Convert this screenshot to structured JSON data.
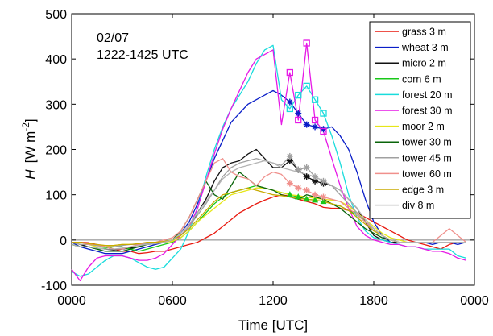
{
  "chart_data": {
    "type": "line",
    "annotation": {
      "date": "02/07",
      "period": "1222-1425 UTC"
    },
    "xlabel": "Time [UTC]",
    "ylabel": {
      "symbol": "H",
      "unit_prefix": "[W m",
      "unit_exp": "-2",
      "unit_suffix": "]"
    },
    "xlim": [
      0,
      1440
    ],
    "ylim": [
      -100,
      500
    ],
    "x_tick_values": [
      0,
      360,
      720,
      1080,
      1440
    ],
    "x_tick_labels": [
      "0000",
      "0600",
      "1200",
      "1800",
      "0000"
    ],
    "y_tick_values": [
      -100,
      0,
      100,
      200,
      300,
      400,
      500
    ],
    "y_tick_labels": [
      "-100",
      "0",
      "100",
      "200",
      "300",
      "400",
      "500"
    ],
    "zero_line": true,
    "grid": false,
    "legend_position": "top-right",
    "x_step_minutes": 30,
    "series": [
      {
        "name": "grass 3 m",
        "color": "#e8190f",
        "marker": null,
        "marker_x": [],
        "values": [
          -5,
          -5,
          -6,
          -10,
          -15,
          -20,
          -25,
          -25,
          -30,
          -28,
          -25,
          -25,
          -20,
          -15,
          -10,
          -5,
          5,
          15,
          30,
          45,
          60,
          70,
          80,
          88,
          95,
          100,
          97,
          90,
          85,
          80,
          72,
          70,
          70,
          65,
          60,
          50,
          40,
          30,
          20,
          10,
          0,
          -5,
          -10,
          -15,
          -20,
          -10,
          -5,
          -5
        ]
      },
      {
        "name": "wheat 3 m",
        "color": "#0a1ec8",
        "marker": "asterisk",
        "marker_x": [
          780,
          810,
          840,
          870,
          900
        ],
        "values": [
          -5,
          -15,
          -20,
          -25,
          -30,
          -30,
          -30,
          -25,
          -20,
          -15,
          -10,
          -5,
          0,
          15,
          40,
          80,
          130,
          180,
          220,
          260,
          280,
          300,
          310,
          320,
          330,
          320,
          305,
          280,
          255,
          250,
          245,
          250,
          230,
          200,
          150,
          90,
          40,
          10,
          -5,
          -5,
          -5,
          -5,
          -5,
          -10,
          -5,
          -5,
          -10,
          -5
        ]
      },
      {
        "name": "micro 2 m",
        "color": "#111111",
        "marker": "asterisk",
        "marker_x": [
          780,
          810,
          840,
          870,
          900
        ],
        "values": [
          -5,
          -10,
          -15,
          -18,
          -20,
          -22,
          -20,
          -18,
          -15,
          -10,
          -8,
          -5,
          0,
          10,
          30,
          60,
          90,
          130,
          160,
          170,
          175,
          190,
          200,
          180,
          160,
          160,
          175,
          155,
          140,
          130,
          125,
          120,
          110,
          90,
          70,
          40,
          10,
          0,
          -5,
          -5,
          -5,
          -5,
          -5,
          -5,
          -5,
          -5,
          -5,
          -5
        ]
      },
      {
        "name": "corn 6 m",
        "color": "#19c819",
        "marker": "triangle",
        "marker_x": [
          780,
          810,
          840,
          870,
          900
        ],
        "values": [
          -10,
          -15,
          -15,
          -20,
          -18,
          -15,
          -15,
          -20,
          -25,
          -20,
          -15,
          -10,
          -5,
          5,
          20,
          40,
          60,
          80,
          95,
          105,
          110,
          115,
          120,
          115,
          110,
          105,
          100,
          95,
          90,
          88,
          85,
          80,
          75,
          65,
          55,
          40,
          25,
          10,
          0,
          -5,
          -5,
          -5,
          -5,
          -5,
          -5,
          -5,
          -5,
          -5
        ]
      },
      {
        "name": "forest 20 m",
        "color": "#19dcdc",
        "marker": "square",
        "marker_x": [
          780,
          810,
          840,
          870,
          900
        ],
        "values": [
          -70,
          -80,
          -75,
          -60,
          -45,
          -35,
          -35,
          -40,
          -50,
          -60,
          -65,
          -60,
          -40,
          -20,
          20,
          70,
          140,
          200,
          250,
          290,
          320,
          350,
          390,
          420,
          430,
          310,
          290,
          320,
          340,
          310,
          280,
          230,
          170,
          100,
          50,
          20,
          5,
          0,
          -5,
          -10,
          -15,
          -15,
          -20,
          -20,
          -20,
          -20,
          -35,
          -40
        ]
      },
      {
        "name": "forest 30 m",
        "color": "#e619e6",
        "marker": "square",
        "marker_x": [
          780,
          810,
          840,
          870,
          900
        ],
        "values": [
          -65,
          -90,
          -60,
          -40,
          -35,
          -35,
          -35,
          -40,
          -45,
          -45,
          -40,
          -30,
          -10,
          10,
          30,
          70,
          130,
          190,
          245,
          290,
          330,
          370,
          400,
          410,
          420,
          255,
          370,
          265,
          435,
          265,
          240,
          180,
          120,
          70,
          30,
          10,
          0,
          -5,
          -10,
          -10,
          -15,
          -15,
          -20,
          -25,
          -25,
          -30,
          -40,
          -45
        ]
      },
      {
        "name": "moor 2 m",
        "color": "#e6e619",
        "marker": null,
        "marker_x": [],
        "values": [
          -5,
          -10,
          -10,
          -15,
          -15,
          -12,
          -10,
          -10,
          -10,
          -8,
          -5,
          -5,
          -3,
          5,
          20,
          40,
          55,
          70,
          85,
          100,
          105,
          110,
          115,
          115,
          110,
          105,
          100,
          98,
          95,
          92,
          90,
          88,
          85,
          75,
          60,
          45,
          30,
          15,
          5,
          0,
          -5,
          -5,
          -5,
          -5,
          -5,
          -5,
          -5,
          -5
        ]
      },
      {
        "name": "tower 30 m",
        "color": "#0a640a",
        "marker": null,
        "marker_x": [],
        "values": [
          -10,
          -15,
          -15,
          -20,
          -25,
          -25,
          -25,
          -20,
          -15,
          -10,
          -5,
          -5,
          0,
          20,
          50,
          90,
          130,
          100,
          90,
          120,
          150,
          135,
          120,
          115,
          110,
          100,
          95,
          90,
          100,
          95,
          90,
          80,
          70,
          55,
          40,
          25,
          15,
          5,
          0,
          -5,
          -5,
          -5,
          -5,
          -5,
          -5,
          -5,
          -5,
          -5
        ]
      },
      {
        "name": "tower 45 m",
        "color": "#a0a0a0",
        "marker": "asterisk",
        "marker_x": [
          780,
          810,
          840,
          870,
          900
        ],
        "values": [
          -5,
          -10,
          -10,
          -12,
          -15,
          -15,
          -12,
          -10,
          -10,
          -8,
          -5,
          -5,
          0,
          10,
          30,
          55,
          80,
          110,
          140,
          160,
          170,
          175,
          180,
          175,
          170,
          165,
          185,
          155,
          160,
          140,
          130,
          120,
          100,
          80,
          60,
          40,
          20,
          10,
          0,
          -5,
          -5,
          -5,
          -5,
          -5,
          -5,
          -5,
          -5,
          -5
        ]
      },
      {
        "name": "tower 60 m",
        "color": "#f0908c",
        "marker": "asterisk",
        "marker_x": [
          780,
          810,
          840,
          870,
          900
        ],
        "values": [
          -5,
          -5,
          -10,
          -10,
          -15,
          -20,
          -20,
          -15,
          -10,
          -5,
          -5,
          0,
          5,
          20,
          50,
          90,
          130,
          170,
          180,
          150,
          140,
          135,
          120,
          140,
          150,
          145,
          125,
          115,
          110,
          100,
          95,
          90,
          85,
          70,
          55,
          40,
          25,
          10,
          0,
          -5,
          -5,
          -5,
          -5,
          -5,
          10,
          25,
          10,
          -5
        ]
      },
      {
        "name": "edge 3 m",
        "color": "#c8aa00",
        "marker": null,
        "marker_x": [],
        "values": [
          -5,
          -5,
          -8,
          -10,
          -12,
          -12,
          -10,
          -10,
          -8,
          -5,
          -5,
          -3,
          0,
          10,
          25,
          45,
          65,
          85,
          100,
          105,
          110,
          115,
          110,
          105,
          100,
          98,
          95,
          92,
          90,
          88,
          85,
          80,
          75,
          65,
          50,
          35,
          20,
          10,
          0,
          -5,
          -5,
          -5,
          -5,
          -5,
          -5,
          -5,
          -5,
          -5
        ]
      },
      {
        "name": "div 8 m",
        "color": "#b4b4b4",
        "marker": null,
        "marker_x": [],
        "values": [
          -10,
          -15,
          -15,
          -18,
          -20,
          -20,
          -18,
          -15,
          -12,
          -10,
          -8,
          -5,
          0,
          15,
          35,
          60,
          85,
          110,
          135,
          150,
          160,
          165,
          170,
          175,
          170,
          160,
          155,
          150,
          145,
          140,
          130,
          120,
          110,
          90,
          70,
          45,
          25,
          10,
          0,
          -5,
          -5,
          -5,
          -5,
          -5,
          -5,
          -5,
          -5,
          -5
        ]
      }
    ]
  }
}
